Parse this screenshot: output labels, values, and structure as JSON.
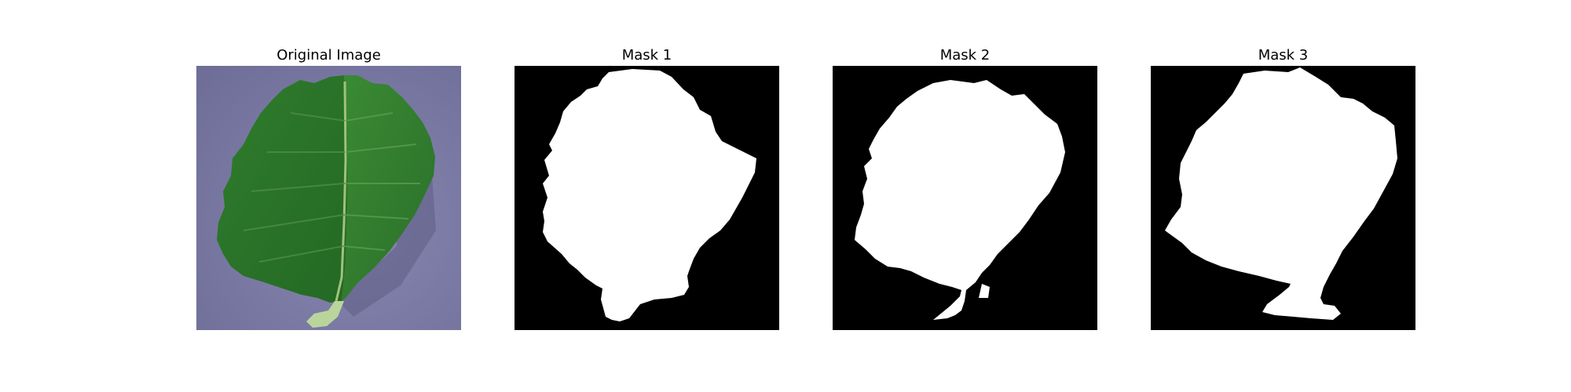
{
  "figure": {
    "panels": [
      {
        "title": "Original Image"
      },
      {
        "title": "Mask 1"
      },
      {
        "title": "Mask 2"
      },
      {
        "title": "Mask 3"
      }
    ]
  },
  "colors": {
    "background": "#ffffff",
    "mask_background": "#000000",
    "mask_foreground": "#ffffff",
    "photo_background": "#7f7ea6",
    "leaf_dark": "#1f5a1f",
    "leaf_mid": "#2f7a2c",
    "leaf_light": "#5aa04a",
    "stem": "#b8d49a"
  },
  "icons": [
    "leaf-photo",
    "segmentation-mask"
  ]
}
